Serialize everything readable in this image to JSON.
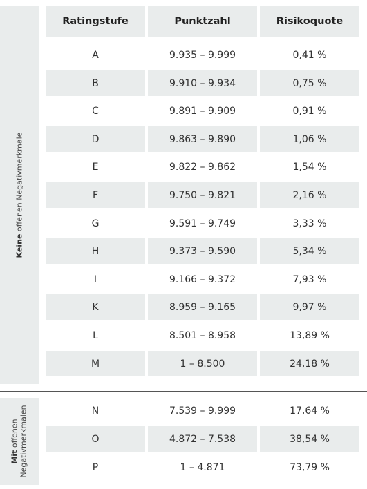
{
  "headers": {
    "rating": "Ratingstufe",
    "points": "Punktzahl",
    "risk": "Risikoquote"
  },
  "groups": {
    "no_negative": {
      "bold": "Keine",
      "rest": "offenen Negativmerkmale"
    },
    "with_negative": {
      "bold": "Mit",
      "rest_line1": "offenen",
      "rest_line2": "Negativmerkmalen"
    }
  },
  "rows_group1": [
    {
      "rating": "A",
      "points": "9.935 – 9.999",
      "risk": "0,41 %"
    },
    {
      "rating": "B",
      "points": "9.910 – 9.934",
      "risk": "0,75 %"
    },
    {
      "rating": "C",
      "points": "9.891 – 9.909",
      "risk": "0,91 %"
    },
    {
      "rating": "D",
      "points": "9.863 – 9.890",
      "risk": "1,06 %"
    },
    {
      "rating": "E",
      "points": "9.822 – 9.862",
      "risk": "1,54 %"
    },
    {
      "rating": "F",
      "points": "9.750 – 9.821",
      "risk": "2,16 %"
    },
    {
      "rating": "G",
      "points": "9.591 – 9.749",
      "risk": "3,33 %"
    },
    {
      "rating": "H",
      "points": "9.373 – 9.590",
      "risk": "5,34 %"
    },
    {
      "rating": "I",
      "points": "9.166 – 9.372",
      "risk": "7,93 %"
    },
    {
      "rating": "K",
      "points": "8.959 – 9.165",
      "risk": "9,97 %"
    },
    {
      "rating": "L",
      "points": "8.501 – 8.958",
      "risk": "13,89 %"
    },
    {
      "rating": "M",
      "points": "1 – 8.500",
      "risk": "24,18 %"
    }
  ],
  "rows_group2": [
    {
      "rating": "N",
      "points": "7.539 – 9.999",
      "risk": "17,64 %"
    },
    {
      "rating": "O",
      "points": "4.872 – 7.538",
      "risk": "38,54 %"
    },
    {
      "rating": "P",
      "points": "1 – 4.871",
      "risk": "73,79 %"
    }
  ]
}
